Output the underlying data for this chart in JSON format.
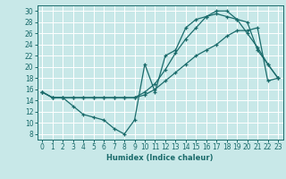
{
  "xlabel": "Humidex (Indice chaleur)",
  "bg_color": "#c8e8e8",
  "grid_color": "#ffffff",
  "line_color": "#1a6b6b",
  "xlim": [
    -0.5,
    23.5
  ],
  "ylim": [
    7,
    31
  ],
  "xticks": [
    0,
    1,
    2,
    3,
    4,
    5,
    6,
    7,
    8,
    9,
    10,
    11,
    12,
    13,
    14,
    15,
    16,
    17,
    18,
    19,
    20,
    21,
    22,
    23
  ],
  "yticks": [
    8,
    10,
    12,
    14,
    16,
    18,
    20,
    22,
    24,
    26,
    28,
    30
  ],
  "curve1_x": [
    0,
    1,
    2,
    3,
    4,
    5,
    6,
    7,
    8,
    9,
    10,
    11,
    12,
    13,
    14,
    15,
    16,
    17,
    18,
    19,
    20,
    21,
    22,
    23
  ],
  "curve1_y": [
    15.5,
    14.5,
    14.5,
    13.0,
    11.5,
    11.0,
    10.5,
    9.0,
    8.0,
    10.5,
    20.5,
    15.5,
    22.0,
    23.0,
    27.0,
    28.5,
    29.0,
    29.5,
    29.0,
    28.5,
    26.0,
    23.5,
    20.5,
    18.0
  ],
  "curve2_x": [
    0,
    1,
    2,
    3,
    4,
    5,
    6,
    7,
    8,
    9,
    10,
    11,
    12,
    13,
    14,
    15,
    16,
    17,
    18,
    19,
    20,
    21,
    22,
    23
  ],
  "curve2_y": [
    15.5,
    14.5,
    14.5,
    14.5,
    14.5,
    14.5,
    14.5,
    14.5,
    14.5,
    14.5,
    15.0,
    16.0,
    17.5,
    19.0,
    20.5,
    22.0,
    23.0,
    24.0,
    25.5,
    26.5,
    26.5,
    27.0,
    17.5,
    18.0
  ],
  "curve3_x": [
    0,
    1,
    2,
    3,
    4,
    5,
    6,
    7,
    8,
    9,
    10,
    11,
    12,
    13,
    14,
    15,
    16,
    17,
    18,
    19,
    20,
    21,
    22,
    23
  ],
  "curve3_y": [
    15.5,
    14.5,
    14.5,
    14.5,
    14.5,
    14.5,
    14.5,
    14.5,
    14.5,
    14.5,
    15.5,
    17.0,
    19.5,
    22.5,
    25.0,
    27.0,
    29.0,
    30.0,
    30.0,
    28.5,
    28.0,
    23.0,
    20.5,
    18.0
  ],
  "xlabel_fontsize": 6.0,
  "tick_fontsize": 5.5
}
